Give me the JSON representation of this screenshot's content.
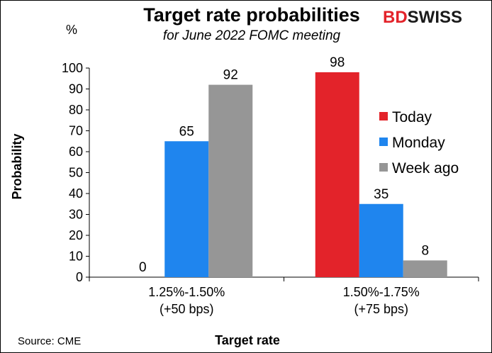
{
  "chart_data": {
    "type": "bar",
    "title": "Target rate probabilities",
    "subtitle": "for June 2022 FOMC meeting",
    "unit": "%",
    "ylabel": "Probability",
    "xlabel": "Target rate",
    "ylim": [
      0,
      100
    ],
    "yticks": [
      0,
      10,
      20,
      30,
      40,
      50,
      60,
      70,
      80,
      90,
      100
    ],
    "categories": [
      [
        "1.25%-1.50%",
        "(+50 bps)"
      ],
      [
        "1.50%-1.75%",
        "(+75 bps)"
      ]
    ],
    "series": [
      {
        "name": "Today",
        "color": "#e3232a",
        "values": [
          0,
          98
        ]
      },
      {
        "name": "Monday",
        "color": "#1f85ee",
        "values": [
          65,
          35
        ]
      },
      {
        "name": "Week ago",
        "color": "#969696",
        "values": [
          92,
          8
        ]
      }
    ],
    "legend": "right",
    "grid": false
  },
  "source": "Source: CME",
  "logo": {
    "part1": "BD",
    "part2": "SWISS"
  }
}
